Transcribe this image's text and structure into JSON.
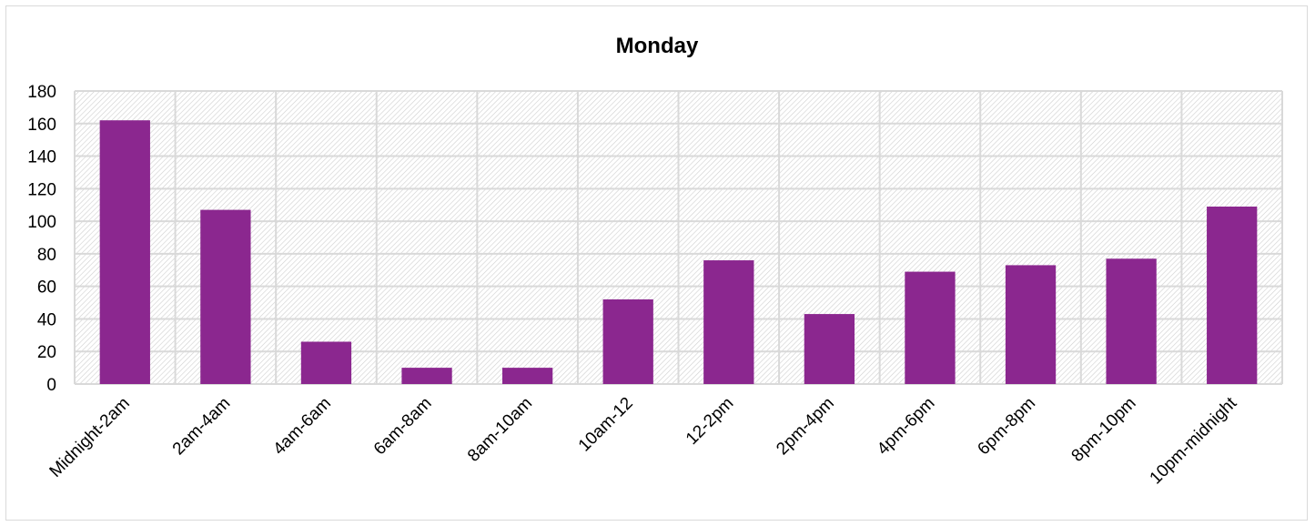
{
  "chart_data": {
    "type": "bar",
    "title": "Monday",
    "xlabel": "",
    "ylabel": "",
    "categories": [
      "Midnight-2am",
      "2am-4am",
      "4am-6am",
      "6am-8am",
      "8am-10am",
      "10am-12",
      "12-2pm",
      "2pm-4pm",
      "4pm-6pm",
      "6pm-8pm",
      "8pm-10pm",
      "10pm-midnight"
    ],
    "values": [
      162,
      107,
      26,
      10,
      10,
      52,
      76,
      43,
      69,
      73,
      77,
      109
    ],
    "ylim": [
      0,
      180
    ],
    "yticks": [
      "0",
      "20",
      "40",
      "60",
      "80",
      "100",
      "120",
      "140",
      "160",
      "180"
    ],
    "grid": true,
    "legend": "none",
    "bar_color": "#8B278F",
    "grid_color": "#d9d9d9"
  }
}
